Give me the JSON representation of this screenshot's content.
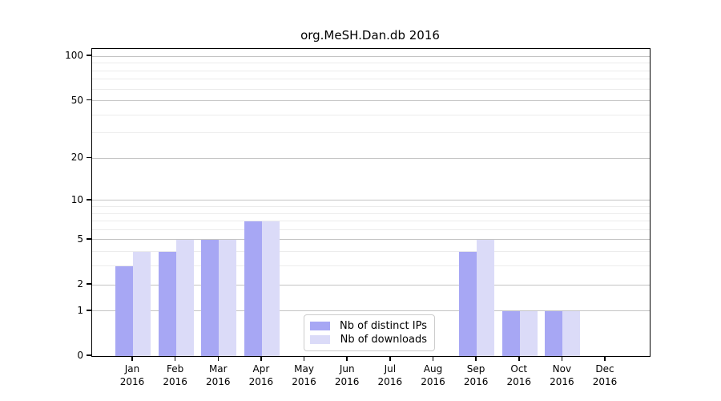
{
  "chart_data": {
    "type": "bar",
    "title": "org.MeSH.Dan.db 2016",
    "categories": [
      "Jan",
      "Feb",
      "Mar",
      "Apr",
      "May",
      "Jun",
      "Jul",
      "Aug",
      "Sep",
      "Oct",
      "Nov",
      "Dec"
    ],
    "year": "2016",
    "series": [
      {
        "name": "Nb of distinct IPs",
        "color": "#a7a7f4",
        "values": [
          3,
          4,
          5,
          7,
          0,
          0,
          0,
          0,
          4,
          1,
          1,
          0
        ]
      },
      {
        "name": "Nb of downloads",
        "color": "#dbdbf8",
        "values": [
          4,
          5,
          5,
          7,
          0,
          0,
          0,
          0,
          5,
          1,
          1,
          0
        ]
      }
    ],
    "xlabel": "",
    "ylabel": "",
    "yscale": "log1p",
    "ylim": [
      0,
      113
    ],
    "yticks": [
      0,
      1,
      2,
      5,
      10,
      20,
      50,
      100
    ],
    "minor_gridlines": [
      3,
      4,
      6,
      7,
      8,
      9,
      30,
      40,
      60,
      70,
      80,
      90
    ],
    "grid": "horizontal",
    "legend_position": "inside-bottom-center",
    "colors": {
      "axis": "#000000",
      "major_grid": "#c4c4c4",
      "minor_grid": "#ececec",
      "legend_border": "#cccccc",
      "legend_bg": "#ffffff",
      "text": "#000000"
    }
  }
}
